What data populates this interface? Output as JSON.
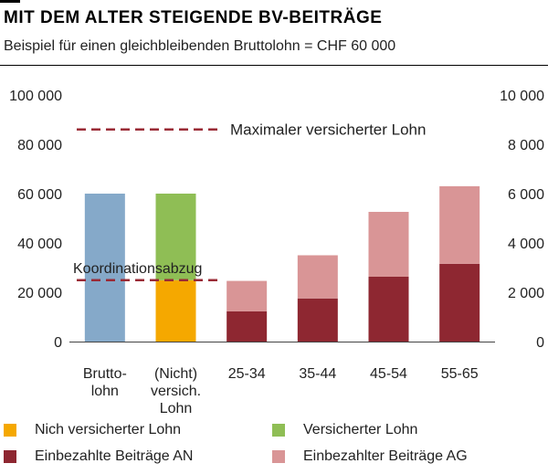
{
  "header": {
    "title": "MIT DEM ALTER STEIGENDE BV-BEITRÄGE",
    "subtitle": "Beispiel für einen gleichbleibenden Bruttolohn = CHF 60 000"
  },
  "colors": {
    "brutto": "#85a9c9",
    "versichert": "#8fbe55",
    "nicht_versichert": "#f5a800",
    "beitraege_an": "#8e2731",
    "beitraege_ag": "#d99596",
    "reference_line": "#9a2a35",
    "axis": "#444444"
  },
  "chart_data": {
    "type": "bar",
    "title": "MIT DEM ALTER STEIGENDE BV-BEITRÄGE",
    "subtitle": "Beispiel für einen gleichbleibenden Bruttolohn = CHF 60 000",
    "left_axis": {
      "range": [
        0,
        100000
      ],
      "ticks": [
        0,
        20000,
        40000,
        60000,
        80000,
        100000
      ],
      "tick_labels": [
        "0",
        "20 000",
        "40 000",
        "60 000",
        "80 000",
        "100 000"
      ]
    },
    "right_axis": {
      "range": [
        0,
        10000
      ],
      "ticks": [
        0,
        2000,
        4000,
        6000,
        8000,
        10000
      ],
      "tick_labels": [
        "0",
        "2 000",
        "4 000",
        "6 000",
        "8 000",
        "10 000"
      ]
    },
    "grid": false,
    "categories": [
      {
        "label": "Brutto-\nlohn",
        "segments": [
          {
            "series": "brutto",
            "value": 60000,
            "axis": "left"
          }
        ]
      },
      {
        "label": "(Nicht)\nversich.\nLohn",
        "segments": [
          {
            "series": "nicht_versichert",
            "value": 24885,
            "axis": "left"
          },
          {
            "series": "versichert",
            "value": 35115,
            "axis": "left"
          }
        ]
      },
      {
        "label": "25-34",
        "segments": [
          {
            "series": "beitraege_an",
            "value": 1230,
            "axis": "right"
          },
          {
            "series": "beitraege_ag",
            "value": 1230,
            "axis": "right"
          }
        ]
      },
      {
        "label": "35-44",
        "segments": [
          {
            "series": "beitraege_an",
            "value": 1750,
            "axis": "right"
          },
          {
            "series": "beitraege_ag",
            "value": 1750,
            "axis": "right"
          }
        ]
      },
      {
        "label": "45-54",
        "segments": [
          {
            "series": "beitraege_an",
            "value": 2630,
            "axis": "right"
          },
          {
            "series": "beitraege_ag",
            "value": 2630,
            "axis": "right"
          }
        ]
      },
      {
        "label": "55-65",
        "segments": [
          {
            "series": "beitraege_an",
            "value": 3150,
            "axis": "right"
          },
          {
            "series": "beitraege_ag",
            "value": 3150,
            "axis": "right"
          }
        ]
      }
    ],
    "reference_lines": [
      {
        "label": "Maximaler versicherter Lohn",
        "value": 86040,
        "axis": "left",
        "label_position": "right-of-line"
      },
      {
        "label": "Koordinationsabzug",
        "value": 24885,
        "axis": "left",
        "label_position": "above-line"
      }
    ],
    "legend": {
      "position": "bottom",
      "items": [
        {
          "series": "nicht_versichert",
          "label": "Nich versicherter Lohn"
        },
        {
          "series": "versichert",
          "label": "Versicherter Lohn"
        },
        {
          "series": "beitraege_an",
          "label": "Einbezahlte Beiträge AN"
        },
        {
          "series": "beitraege_ag",
          "label": "Einbezahlter Beiträge AG"
        }
      ]
    }
  }
}
